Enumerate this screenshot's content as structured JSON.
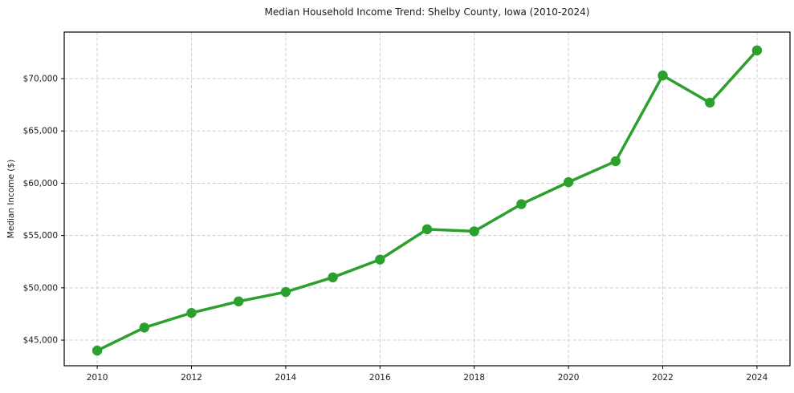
{
  "chart_data": {
    "type": "line",
    "title": "Median Household Income Trend: Shelby County, Iowa (2010-2024)",
    "xlabel": "",
    "ylabel": "Median Income ($)",
    "x": [
      2010,
      2011,
      2012,
      2013,
      2014,
      2015,
      2016,
      2017,
      2018,
      2019,
      2020,
      2021,
      2022,
      2023,
      2024
    ],
    "series": [
      {
        "name": "Median Household Income",
        "values": [
          44000,
          46200,
          47600,
          48700,
          49600,
          51000,
          52700,
          55600,
          55400,
          58000,
          60100,
          62100,
          70300,
          67700,
          72700
        ],
        "color": "#2ca02c",
        "marker": "circle"
      }
    ],
    "xticks": {
      "values": [
        2010,
        2012,
        2014,
        2016,
        2018,
        2020,
        2022,
        2024
      ],
      "labels": [
        "2010",
        "2012",
        "2014",
        "2016",
        "2018",
        "2020",
        "2022",
        "2024"
      ]
    },
    "yticks": {
      "values": [
        45000,
        50000,
        55000,
        60000,
        65000,
        70000
      ],
      "labels": [
        "$45,000",
        "$50,000",
        "$55,000",
        "$60,000",
        "$65,000",
        "$70,000"
      ]
    },
    "xlim": [
      2009.3,
      2024.7
    ],
    "ylim": [
      42550,
      74450
    ],
    "grid": true,
    "grid_style": "dashed",
    "legend_position": "none",
    "colors": {
      "line": "#2ca02c",
      "grid": "#cccccc",
      "axis": "#000000",
      "text": "#1a1a1a",
      "background": "#ffffff"
    }
  }
}
